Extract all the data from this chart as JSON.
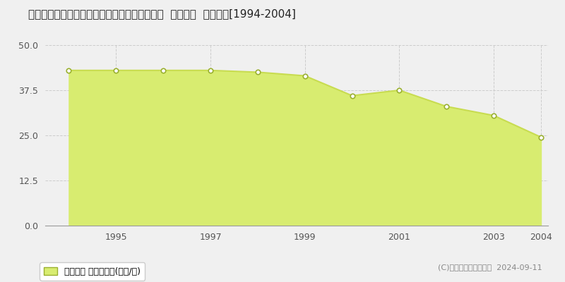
{
  "title": "兵庫県神戸市西区玉津町出合字寺家７１番１外  地価公示  地価推移[1994-2004]",
  "years": [
    1994,
    1995,
    1996,
    1997,
    1998,
    1999,
    2000,
    2001,
    2002,
    2003,
    2004
  ],
  "values": [
    43.0,
    43.0,
    43.0,
    43.0,
    42.5,
    41.5,
    36.0,
    37.5,
    33.0,
    30.5,
    24.5
  ],
  "line_color": "#c8dc50",
  "fill_color": "#d8ec70",
  "marker_facecolor": "#ffffff",
  "marker_edgecolor": "#9ab030",
  "background_color": "#f0f0f0",
  "plot_bg_color": "#f0f0f0",
  "grid_color": "#cccccc",
  "ylim_min": 0,
  "ylim_max": 50,
  "yticks": [
    0,
    12.5,
    25,
    37.5,
    50
  ],
  "xtick_years": [
    1995,
    1997,
    1999,
    2001,
    2003,
    2004
  ],
  "legend_label": "地価公示 平均坪単価(万円/坪)",
  "copyright_text": "(C)土地価格ドットコム  2024-09-11",
  "title_fontsize": 11,
  "tick_fontsize": 9,
  "legend_fontsize": 9,
  "copyright_fontsize": 8
}
